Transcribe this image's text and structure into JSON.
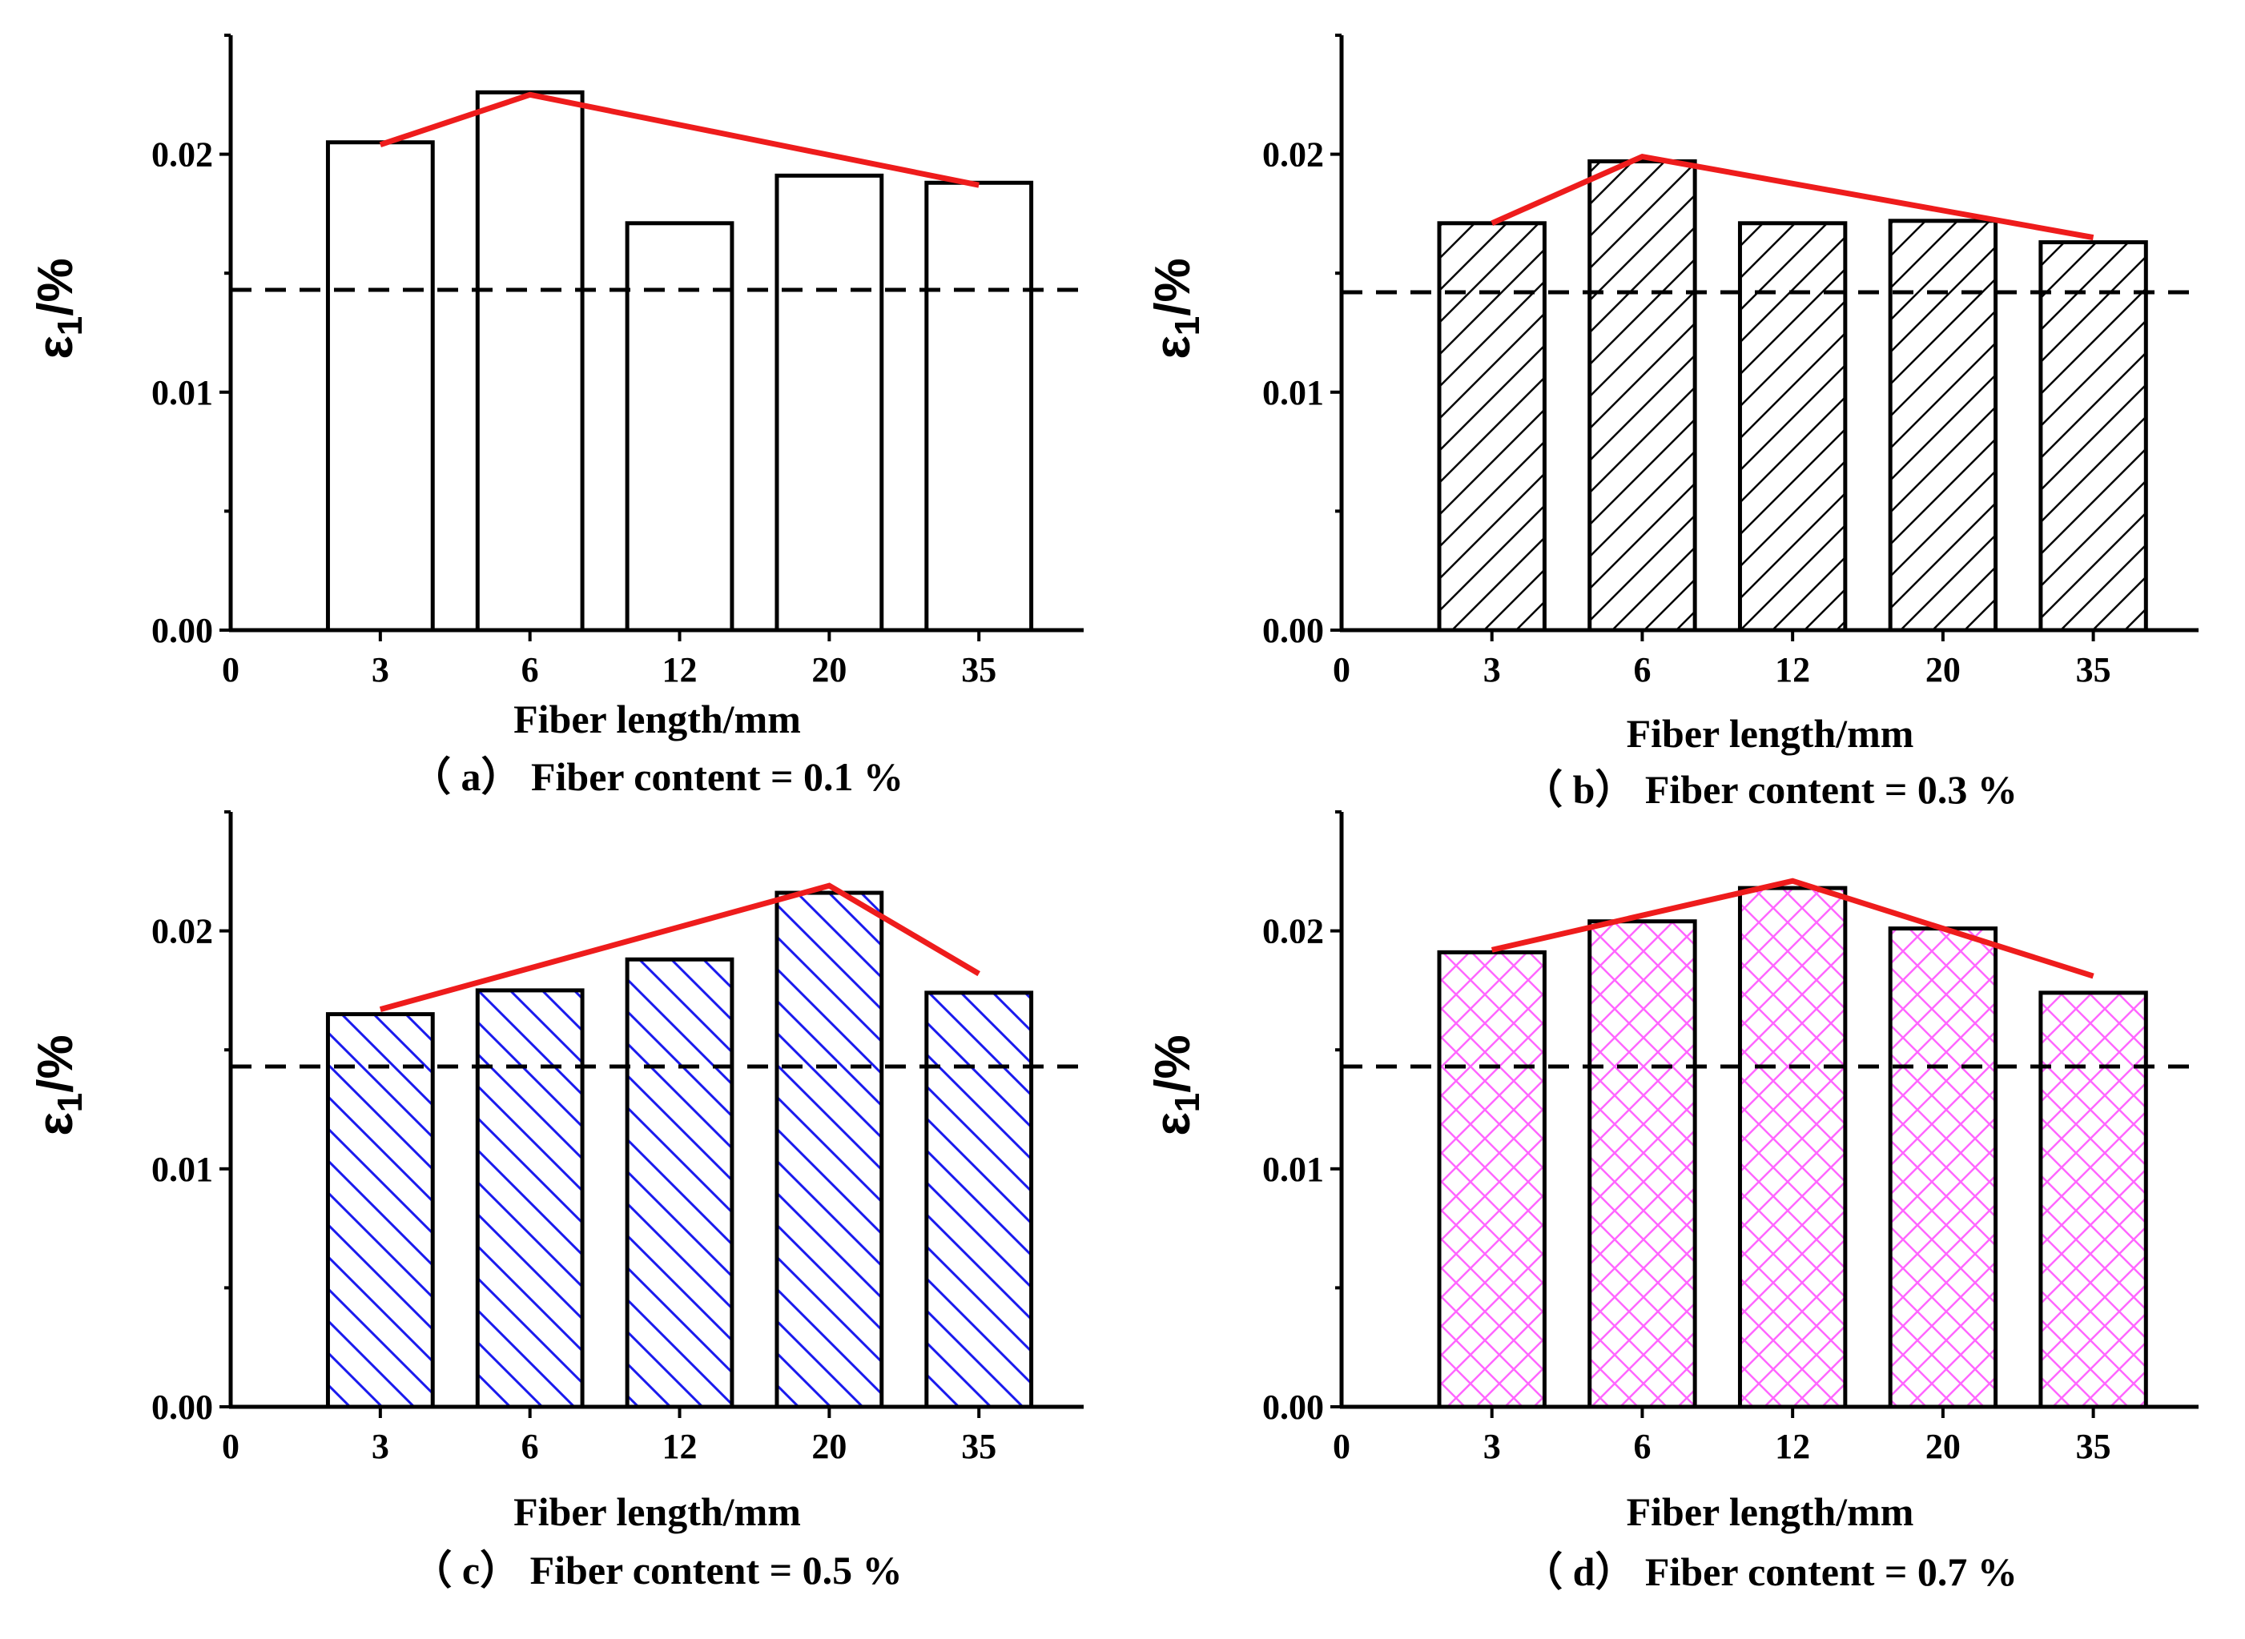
{
  "colors": {
    "axis": "#000000",
    "trend": "#ee1c1c",
    "ref": "#000000",
    "hatch_a": "none",
    "hatch_b": "#000000",
    "hatch_c": "#1a1aee",
    "hatch_d": "#ff66ff"
  },
  "chart_data": [
    {
      "type": "bar",
      "panel": "a",
      "caption": "（ a） Fiber content = 0.1 %",
      "categories": [
        "3",
        "6",
        "12",
        "20",
        "35"
      ],
      "values": [
        0.0205,
        0.0226,
        0.0171,
        0.0191,
        0.0188
      ],
      "trend": [
        0.0204,
        0.0225,
        null,
        null,
        0.0187
      ],
      "reference_line": 0.0143,
      "xlabel": "Fiber length/mm",
      "ylabel_symbol": "ε",
      "ylabel_sub": "1",
      "ylabel_unit": "/%",
      "x_origin_label": "0",
      "y_ticks": [
        "0.00",
        "0.01",
        "0.02"
      ],
      "ylim": [
        0,
        0.025
      ],
      "hatch": "none"
    },
    {
      "type": "bar",
      "panel": "b",
      "caption": "（ b） Fiber content = 0.3 %",
      "categories": [
        "3",
        "6",
        "12",
        "20",
        "35"
      ],
      "values": [
        0.0171,
        0.0197,
        0.0171,
        0.0172,
        0.0163
      ],
      "trend": [
        0.0171,
        0.0199,
        null,
        null,
        0.0165
      ],
      "reference_line": 0.0142,
      "xlabel": "Fiber length/mm",
      "ylabel_symbol": "ε",
      "ylabel_sub": "1",
      "ylabel_unit": "/%",
      "x_origin_label": "0",
      "y_ticks": [
        "0.00",
        "0.01",
        "0.02"
      ],
      "ylim": [
        0,
        0.025
      ],
      "hatch": "diagonal-up"
    },
    {
      "type": "bar",
      "panel": "c",
      "caption": "（ c） Fiber content = 0.5 %",
      "categories": [
        "3",
        "6",
        "12",
        "20",
        "35"
      ],
      "values": [
        0.0165,
        0.0175,
        0.0188,
        0.0216,
        0.0174
      ],
      "trend": [
        0.0167,
        null,
        null,
        0.0219,
        0.0182
      ],
      "reference_line": 0.0143,
      "xlabel": "Fiber length/mm",
      "ylabel_symbol": "ε",
      "ylabel_sub": "1",
      "ylabel_unit": "/%",
      "x_origin_label": "0",
      "y_ticks": [
        "0.00",
        "0.01",
        "0.02"
      ],
      "ylim": [
        0,
        0.025
      ],
      "hatch": "diagonal-down"
    },
    {
      "type": "bar",
      "panel": "d",
      "caption": "（ d） Fiber content = 0.7 %",
      "categories": [
        "3",
        "6",
        "12",
        "20",
        "35"
      ],
      "values": [
        0.0191,
        0.0204,
        0.0218,
        0.0201,
        0.0174
      ],
      "trend": [
        0.0192,
        null,
        0.0221,
        null,
        0.0181
      ],
      "reference_line": 0.0143,
      "xlabel": "Fiber length/mm",
      "ylabel_symbol": "ε",
      "ylabel_sub": "1",
      "ylabel_unit": "/%",
      "x_origin_label": "0",
      "y_ticks": [
        "0.00",
        "0.01",
        "0.02"
      ],
      "ylim": [
        0,
        0.025
      ],
      "hatch": "crosshatch"
    }
  ]
}
